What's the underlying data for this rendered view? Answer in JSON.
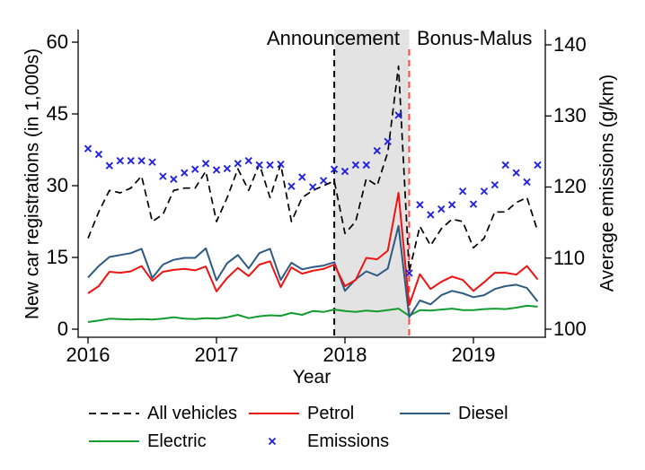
{
  "chart_data": {
    "type": "line",
    "x_axis": {
      "label": "Year",
      "ticks": [
        2016,
        2017,
        2018,
        2019
      ],
      "monthly_start": "2016-01",
      "monthly_end": "2019-07"
    },
    "left_axis": {
      "label": "New car registrations (in 1,000s)",
      "ticks": [
        0,
        15,
        30,
        45,
        60
      ],
      "range": [
        0,
        60
      ]
    },
    "right_axis": {
      "label": "Average emissions (g/km)",
      "ticks": [
        100,
        110,
        120,
        130,
        140
      ],
      "range": [
        100,
        140
      ]
    },
    "series": [
      {
        "name": "All vehicles",
        "axis": "left",
        "style": "dashed",
        "color": "#000000",
        "values": [
          19,
          24.5,
          29,
          28.5,
          29.5,
          32,
          22.5,
          24,
          29,
          29.5,
          29.5,
          33,
          22.5,
          27.5,
          33.5,
          29,
          34.5,
          27.5,
          34.5,
          22.5,
          27.5,
          29,
          30,
          31,
          20,
          22.5,
          31.5,
          30,
          37,
          55,
          12,
          21.5,
          17.5,
          21,
          23,
          22.5,
          17,
          19,
          24.5,
          24.5,
          26.5,
          27.5,
          20.5
        ]
      },
      {
        "name": "Petrol",
        "axis": "left",
        "style": "solid",
        "color": "#ed1310",
        "values": [
          7.5,
          9,
          12,
          11.8,
          12.1,
          13.2,
          10.1,
          12,
          12.4,
          12.6,
          12.3,
          13.1,
          7.9,
          10.7,
          12.8,
          11.1,
          13.5,
          14.2,
          8.8,
          12.9,
          11.6,
          12.2,
          12.6,
          13.5,
          9,
          10.3,
          14.9,
          14.6,
          16.4,
          28.5,
          5,
          11.5,
          8.4,
          9.9,
          11,
          10.3,
          8,
          9.8,
          11.8,
          11.8,
          11.4,
          13.2,
          10.4
        ]
      },
      {
        "name": "Diesel",
        "axis": "left",
        "style": "solid",
        "color": "#2d5a82",
        "values": [
          10.8,
          13.2,
          15.1,
          15.5,
          15.9,
          16.8,
          10.7,
          13.5,
          14.5,
          14.9,
          14.9,
          16.9,
          10.2,
          13.8,
          15.5,
          12.7,
          15.9,
          16.8,
          10.3,
          13.9,
          12.5,
          13,
          13.3,
          14,
          8,
          10.4,
          12.1,
          11.2,
          12.7,
          21.6,
          2.5,
          6,
          5.2,
          7.1,
          8,
          7.5,
          6.7,
          7.1,
          8.4,
          9,
          9.3,
          8.6,
          5.8
        ]
      },
      {
        "name": "Electric",
        "axis": "left",
        "style": "solid",
        "color": "#129b30",
        "values": [
          1.5,
          1.8,
          2.2,
          2.1,
          2,
          2.1,
          2,
          2.2,
          2.5,
          2.2,
          2.1,
          2.3,
          2.2,
          2.5,
          3,
          2.3,
          2.7,
          2.9,
          2.8,
          3.4,
          3,
          3.8,
          3.6,
          4.1,
          3.8,
          3.6,
          3.9,
          3.7,
          4,
          4.3,
          2.8,
          4,
          3.9,
          4.1,
          4.3,
          4,
          4,
          4.2,
          4.3,
          4.2,
          4.5,
          4.9,
          4.7
        ]
      },
      {
        "name": "Emissions",
        "axis": "right",
        "style": "marker-x",
        "color": "#2222dd",
        "values": [
          125.4,
          124.6,
          123,
          123.7,
          123.7,
          123.7,
          123.5,
          121.5,
          121.1,
          122,
          122.5,
          123.3,
          122.4,
          122.6,
          123.3,
          123.7,
          123.1,
          123.1,
          123.2,
          120.1,
          121.4,
          120,
          120.9,
          122.5,
          122.2,
          123.1,
          123.1,
          125.1,
          126.4,
          130.1,
          107.9,
          117.5,
          116.1,
          116.9,
          117.5,
          119.4,
          117.6,
          119.4,
          120.3,
          123.1,
          122,
          120.7,
          123.1
        ]
      }
    ],
    "events": [
      {
        "label": "Announcement",
        "x": 2017.9167,
        "line_color": "#000000",
        "line_style": "dashed"
      },
      {
        "label": "Bonus-Malus",
        "x": 2018.5,
        "line_color": "#fb4444",
        "line_style": "dashed"
      }
    ],
    "shaded_region": {
      "x_start": 2017.9167,
      "x_end": 2018.5,
      "color": "#e3e3e3"
    },
    "legend_position": "bottom"
  }
}
